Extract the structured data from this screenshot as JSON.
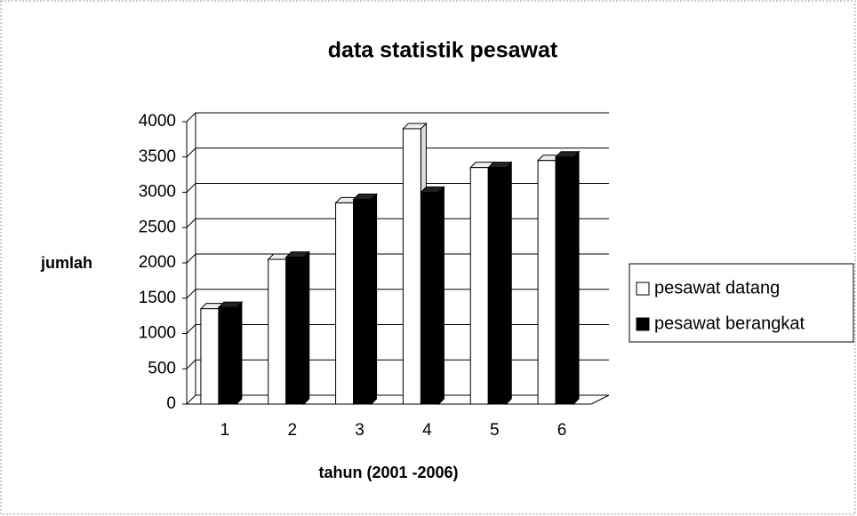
{
  "chart_data": {
    "type": "bar",
    "title": "data statistik pesawat",
    "x_label": "tahun (2001 -2006)",
    "y_label": "jumlah",
    "categories": [
      "1",
      "2",
      "3",
      "4",
      "5",
      "6"
    ],
    "series": [
      {
        "name": "pesawat datang",
        "color": "#ffffff",
        "values": [
          1350,
          2050,
          2850,
          3900,
          3350,
          3450
        ]
      },
      {
        "name": "pesawat berangkat",
        "color": "#000000",
        "values": [
          1370,
          2080,
          2900,
          3000,
          3350,
          3500
        ]
      }
    ],
    "ylim": [
      0,
      4000
    ],
    "yticks": [
      0,
      500,
      1000,
      1500,
      2000,
      2500,
      3000,
      3500,
      4000
    ],
    "grid": true,
    "legend": "right"
  }
}
